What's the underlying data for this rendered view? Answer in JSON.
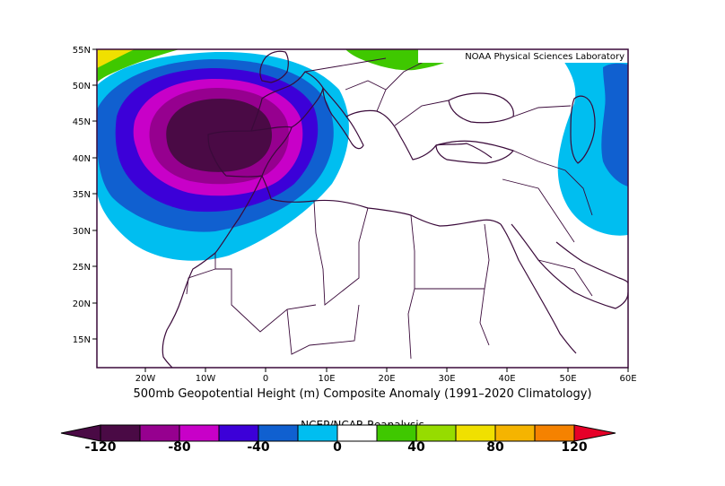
{
  "map": {
    "credit": "NOAA Physical Sciences Laboratory",
    "caption": "500mb Geopotential Height (m) Composite Anomaly (1991–2020 Climatology)",
    "source": "NCEP/NCAR Reanalysis",
    "lat_labels": [
      "55N",
      "50N",
      "45N",
      "40N",
      "35N",
      "30N",
      "25N",
      "20N",
      "15N"
    ],
    "lon_labels": [
      "20W",
      "10W",
      "0",
      "10E",
      "20E",
      "30E",
      "40E",
      "50E",
      "60E"
    ],
    "domain": {
      "lon_range": [
        -28,
        60
      ],
      "lat_range": [
        11,
        55
      ]
    }
  },
  "colorbar": {
    "labels": [
      "-120",
      "-80",
      "-40",
      "0",
      "40",
      "80",
      "120"
    ],
    "colors": [
      "#4a0a45",
      "#96008f",
      "#c800c8",
      "#3c00d8",
      "#1060d0",
      "#00bef0",
      "#ffffff",
      "#ffffff",
      "#3fc800",
      "#96dc00",
      "#f0e000",
      "#f5b400",
      "#f58200",
      "#f03c00",
      "#e60028"
    ]
  },
  "anomaly": {
    "levels": [
      "#00bef0",
      "#1060d0",
      "#3c00d8",
      "#c800c8",
      "#96008f",
      "#4a0a45"
    ],
    "positive_levels": [
      "#3fc800",
      "#f0e000"
    ]
  }
}
